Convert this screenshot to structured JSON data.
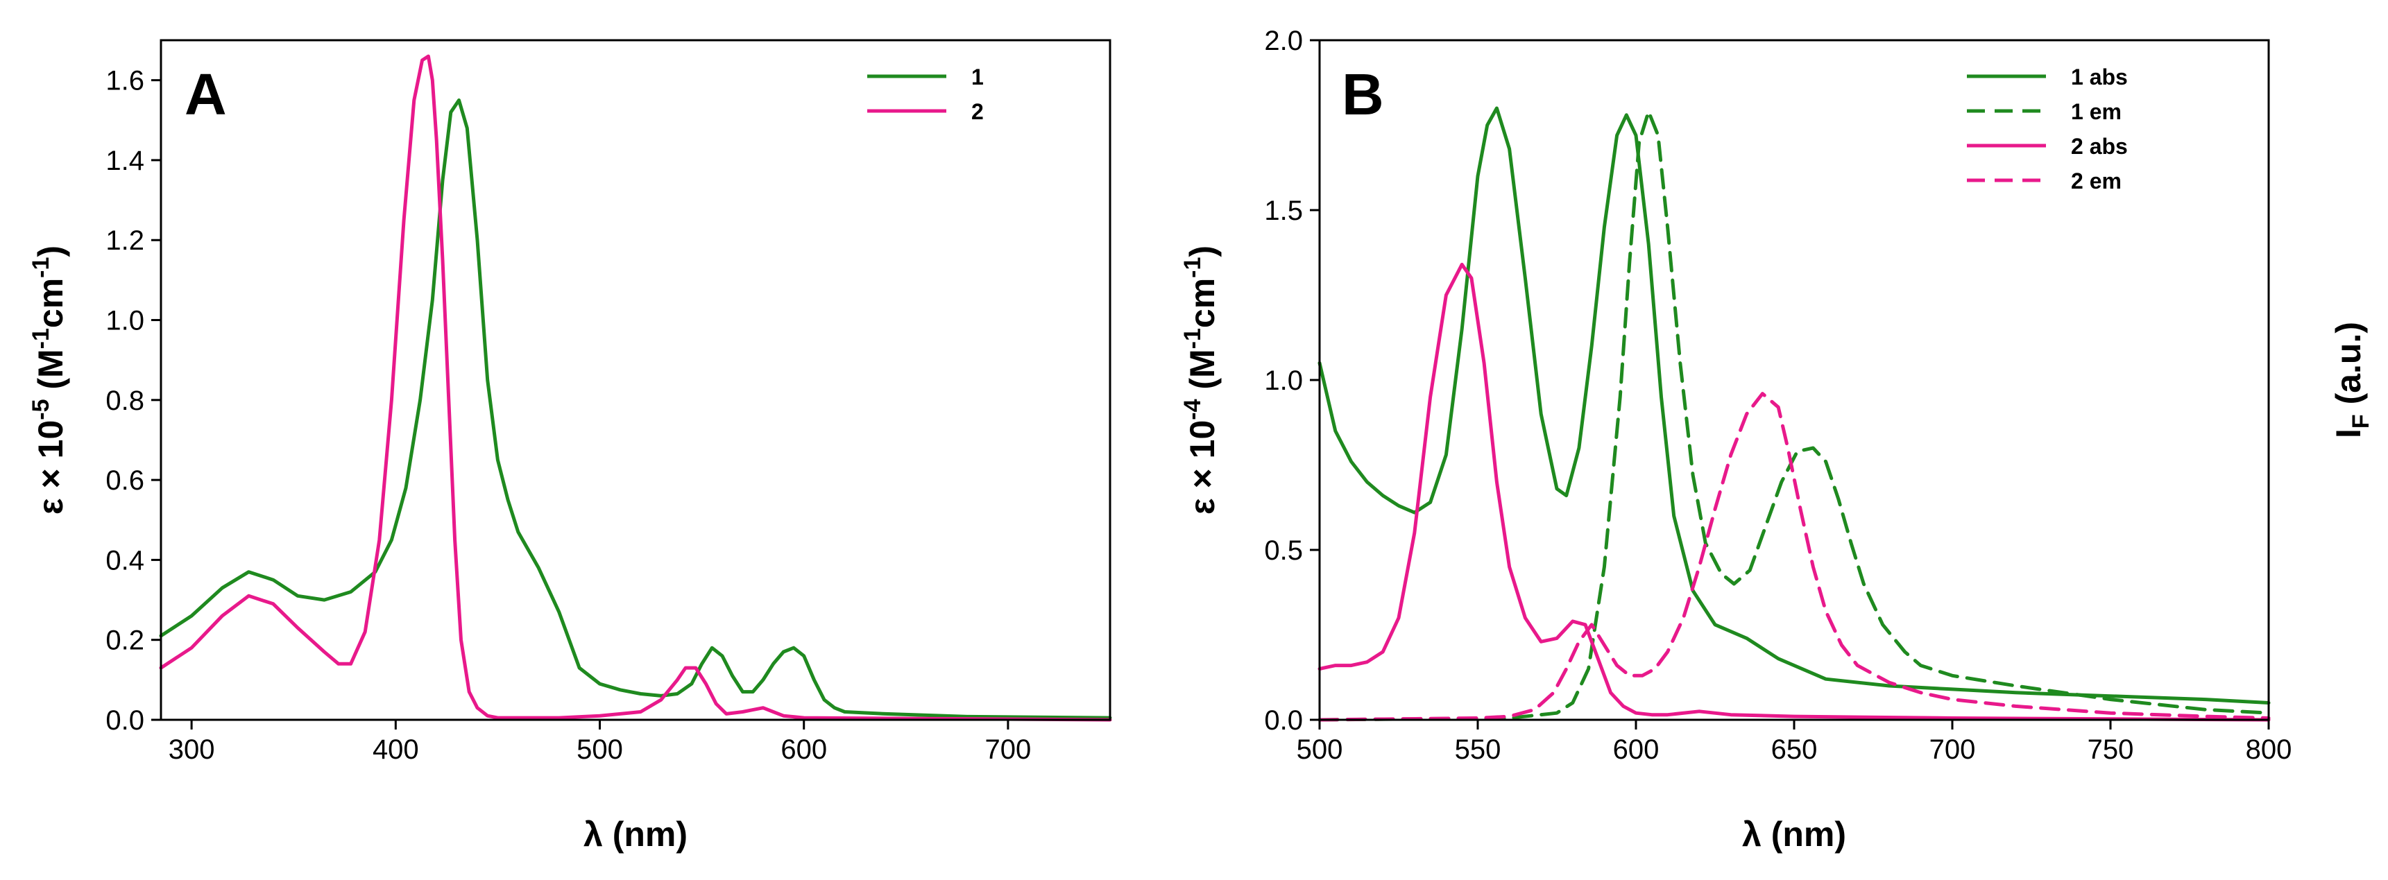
{
  "colors": {
    "green": "#1f8a1f",
    "pink": "#e8198b"
  },
  "chart_data": [
    {
      "type": "line",
      "panel_label": "A",
      "xlabel_sym": "λ",
      "xlabel_unit": " (nm)",
      "ylabel_pre": "ε × 10",
      "ylabel_exp": "-5",
      "ylabel_mid": " (M",
      "ylabel_exp2": "-1",
      "ylabel_mid2": "cm",
      "ylabel_exp3": "-1",
      "ylabel_post": ")",
      "xlim": [
        285,
        750
      ],
      "ylim": [
        0,
        1.7
      ],
      "xticks": [
        300,
        400,
        500,
        600,
        700
      ],
      "xtick_labels": [
        "300",
        "400",
        "500",
        "600",
        "700"
      ],
      "yticks": [
        0.0,
        0.2,
        0.4,
        0.6,
        0.8,
        1.0,
        1.2,
        1.4,
        1.6
      ],
      "ytick_labels": [
        "0.0",
        "0.2",
        "0.4",
        "0.6",
        "0.8",
        "1.0",
        "1.2",
        "1.4",
        "1.6"
      ],
      "legend": [
        {
          "label": "1",
          "color": "green",
          "dash": false
        },
        {
          "label": "2",
          "color": "pink",
          "dash": false
        }
      ],
      "series": [
        {
          "name": "1",
          "color": "green",
          "dash": false,
          "x": [
            285,
            300,
            315,
            328,
            340,
            352,
            365,
            378,
            390,
            398,
            405,
            412,
            418,
            423,
            427,
            431,
            435,
            440,
            445,
            450,
            455,
            460,
            470,
            480,
            490,
            500,
            510,
            520,
            530,
            538,
            545,
            550,
            555,
            560,
            565,
            570,
            575,
            580,
            585,
            590,
            595,
            600,
            605,
            610,
            615,
            620,
            640,
            680,
            750
          ],
          "y": [
            0.21,
            0.26,
            0.33,
            0.37,
            0.35,
            0.31,
            0.3,
            0.32,
            0.37,
            0.45,
            0.58,
            0.8,
            1.05,
            1.35,
            1.52,
            1.55,
            1.48,
            1.2,
            0.85,
            0.65,
            0.55,
            0.47,
            0.38,
            0.27,
            0.13,
            0.09,
            0.075,
            0.065,
            0.06,
            0.065,
            0.09,
            0.14,
            0.18,
            0.16,
            0.11,
            0.07,
            0.07,
            0.1,
            0.14,
            0.17,
            0.18,
            0.16,
            0.1,
            0.05,
            0.03,
            0.02,
            0.015,
            0.008,
            0.005
          ]
        },
        {
          "name": "2",
          "color": "pink",
          "dash": false,
          "x": [
            285,
            300,
            315,
            328,
            340,
            352,
            365,
            372,
            378,
            385,
            392,
            398,
            404,
            409,
            413,
            416,
            418,
            420,
            423,
            426,
            429,
            432,
            436,
            440,
            445,
            450,
            480,
            500,
            520,
            530,
            538,
            542,
            547,
            552,
            557,
            562,
            570,
            575,
            580,
            585,
            590,
            600,
            750
          ],
          "y": [
            0.13,
            0.18,
            0.26,
            0.31,
            0.29,
            0.23,
            0.17,
            0.14,
            0.14,
            0.22,
            0.45,
            0.8,
            1.25,
            1.55,
            1.65,
            1.66,
            1.6,
            1.45,
            1.15,
            0.8,
            0.45,
            0.2,
            0.07,
            0.03,
            0.01,
            0.005,
            0.005,
            0.01,
            0.02,
            0.05,
            0.1,
            0.13,
            0.13,
            0.09,
            0.04,
            0.015,
            0.02,
            0.025,
            0.03,
            0.02,
            0.01,
            0.005,
            0.0
          ]
        }
      ]
    },
    {
      "type": "line",
      "panel_label": "B",
      "xlabel_sym": "λ",
      "xlabel_unit": " (nm)",
      "ylabel_pre": "ε × 10",
      "ylabel_exp": "-4",
      "ylabel_mid": " (M",
      "ylabel_exp2": "-1",
      "ylabel_mid2": "cm",
      "ylabel_exp3": "-1",
      "ylabel_post": ")",
      "ylabel_right_main": "I",
      "ylabel_right_sub": "F",
      "ylabel_right_post": " (a.u.)",
      "xlim": [
        500,
        800
      ],
      "ylim": [
        0,
        2.0
      ],
      "xticks": [
        500,
        550,
        600,
        650,
        700,
        750,
        800
      ],
      "xtick_labels": [
        "500",
        "550",
        "600",
        "650",
        "700",
        "750",
        "800"
      ],
      "yticks": [
        0.0,
        0.5,
        1.0,
        1.5,
        2.0
      ],
      "ytick_labels": [
        "0.0",
        "0.5",
        "1.0",
        "1.5",
        "2.0"
      ],
      "legend": [
        {
          "label": "1 abs",
          "color": "green",
          "dash": false
        },
        {
          "label": "1 em",
          "color": "green",
          "dash": true
        },
        {
          "label": "2 abs",
          "color": "pink",
          "dash": false
        },
        {
          "label": "2 em",
          "color": "pink",
          "dash": true
        }
      ],
      "series": [
        {
          "name": "1 abs",
          "color": "green",
          "dash": false,
          "x": [
            500,
            505,
            510,
            515,
            520,
            525,
            530,
            535,
            540,
            545,
            550,
            553,
            556,
            560,
            565,
            570,
            575,
            578,
            582,
            586,
            590,
            594,
            597,
            600,
            604,
            608,
            612,
            618,
            625,
            635,
            645,
            660,
            680,
            700,
            720,
            750,
            780,
            800
          ],
          "y": [
            1.05,
            0.85,
            0.76,
            0.7,
            0.66,
            0.63,
            0.61,
            0.64,
            0.78,
            1.15,
            1.6,
            1.75,
            1.8,
            1.68,
            1.3,
            0.9,
            0.68,
            0.66,
            0.8,
            1.1,
            1.45,
            1.72,
            1.78,
            1.72,
            1.4,
            0.95,
            0.6,
            0.38,
            0.28,
            0.24,
            0.18,
            0.12,
            0.1,
            0.09,
            0.08,
            0.07,
            0.06,
            0.05
          ]
        },
        {
          "name": "1 em",
          "color": "green",
          "dash": true,
          "x": [
            500,
            560,
            575,
            580,
            585,
            590,
            595,
            598,
            601,
            604,
            607,
            610,
            614,
            618,
            622,
            627,
            631,
            636,
            641,
            646,
            651,
            656,
            660,
            664,
            668,
            672,
            678,
            685,
            690,
            700,
            720,
            750,
            780,
            800
          ],
          "y": [
            0,
            0.005,
            0.02,
            0.05,
            0.15,
            0.45,
            0.95,
            1.35,
            1.7,
            1.79,
            1.72,
            1.45,
            1.05,
            0.72,
            0.52,
            0.43,
            0.4,
            0.44,
            0.57,
            0.7,
            0.79,
            0.8,
            0.76,
            0.65,
            0.52,
            0.4,
            0.28,
            0.2,
            0.16,
            0.13,
            0.1,
            0.06,
            0.03,
            0.02
          ]
        },
        {
          "name": "2 abs",
          "color": "pink",
          "dash": false,
          "x": [
            500,
            505,
            510,
            515,
            520,
            525,
            530,
            535,
            540,
            545,
            548,
            552,
            556,
            560,
            565,
            570,
            575,
            580,
            584,
            588,
            592,
            596,
            600,
            605,
            610,
            620,
            630,
            650,
            700,
            800
          ],
          "y": [
            0.15,
            0.16,
            0.16,
            0.17,
            0.2,
            0.3,
            0.55,
            0.95,
            1.25,
            1.34,
            1.3,
            1.05,
            0.7,
            0.45,
            0.3,
            0.23,
            0.24,
            0.29,
            0.28,
            0.18,
            0.08,
            0.04,
            0.02,
            0.015,
            0.015,
            0.025,
            0.015,
            0.01,
            0.005,
            0.0
          ]
        },
        {
          "name": "2 em",
          "color": "pink",
          "dash": true,
          "x": [
            500,
            550,
            560,
            568,
            574,
            578,
            582,
            586,
            590,
            594,
            598,
            602,
            606,
            610,
            615,
            620,
            625,
            630,
            635,
            640,
            645,
            648,
            652,
            656,
            660,
            665,
            670,
            680,
            690,
            700,
            720,
            750,
            780,
            800
          ],
          "y": [
            0,
            0.005,
            0.01,
            0.03,
            0.08,
            0.15,
            0.23,
            0.28,
            0.22,
            0.16,
            0.13,
            0.13,
            0.15,
            0.2,
            0.3,
            0.45,
            0.62,
            0.78,
            0.9,
            0.96,
            0.92,
            0.8,
            0.62,
            0.45,
            0.32,
            0.22,
            0.16,
            0.11,
            0.08,
            0.06,
            0.04,
            0.02,
            0.01,
            0.005
          ]
        }
      ]
    }
  ]
}
